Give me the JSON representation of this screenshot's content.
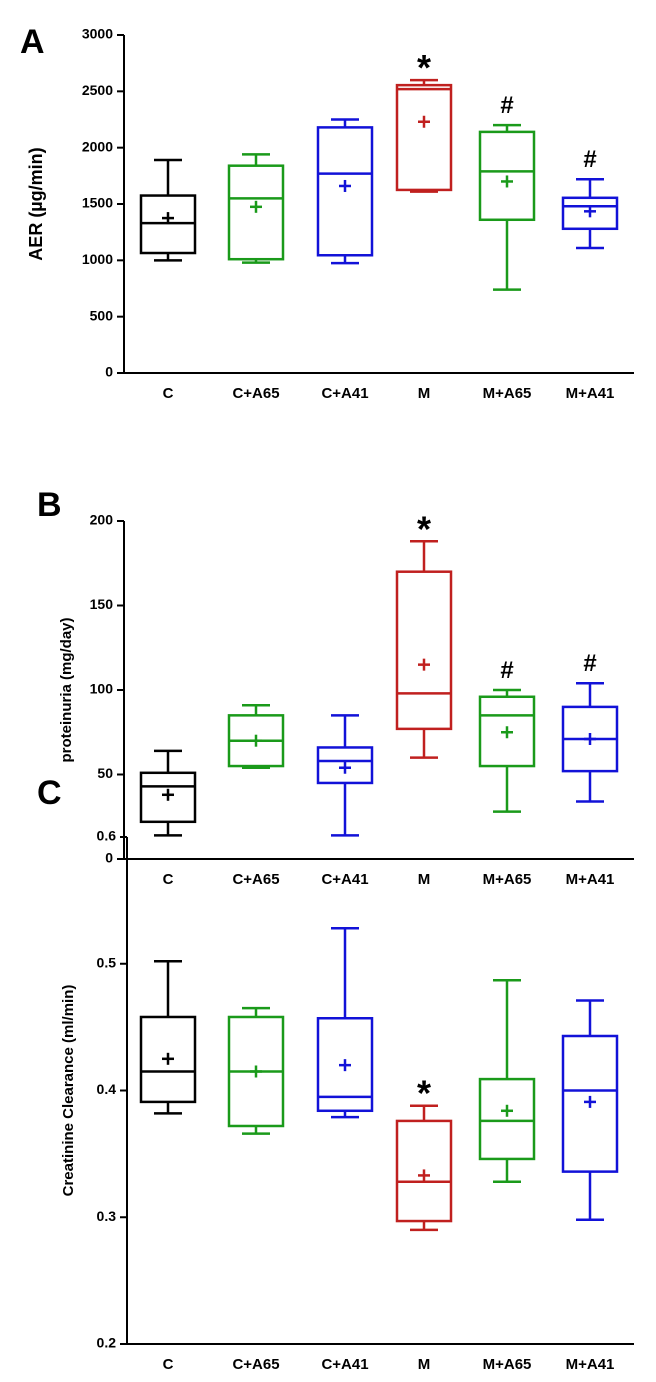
{
  "colors": {
    "C": "#000000",
    "A65": "#1a9a1a",
    "A41": "#1212d8",
    "M": "#c0201f"
  },
  "chart_data": [
    {
      "type": "boxplot",
      "panel_label": "A",
      "ylabel": "AER (µg/min)",
      "ylim": [
        0,
        3000
      ],
      "yticks": [
        0,
        500,
        1000,
        1500,
        2000,
        2500,
        3000
      ],
      "categories": [
        "C",
        "C+A65",
        "C+A41",
        "M",
        "M+A65",
        "M+A41"
      ],
      "boxes": [
        {
          "category": "C",
          "color_key": "C",
          "min": 1000,
          "q1": 1065,
          "median": 1330,
          "q3": 1575,
          "max": 1890,
          "mean": 1375,
          "sig": ""
        },
        {
          "category": "C+A65",
          "color_key": "A65",
          "min": 980,
          "q1": 1010,
          "median": 1550,
          "q3": 1840,
          "max": 1940,
          "mean": 1475,
          "sig": ""
        },
        {
          "category": "C+A41",
          "color_key": "A41",
          "min": 975,
          "q1": 1045,
          "median": 1770,
          "q3": 2180,
          "max": 2250,
          "mean": 1660,
          "sig": ""
        },
        {
          "category": "M",
          "color_key": "M",
          "min": 1610,
          "q1": 1625,
          "median": 2520,
          "q3": 2555,
          "max": 2600,
          "mean": 2230,
          "sig": "*"
        },
        {
          "category": "M+A65",
          "color_key": "A65",
          "min": 740,
          "q1": 1360,
          "median": 1790,
          "q3": 2140,
          "max": 2200,
          "mean": 1700,
          "sig": "#"
        },
        {
          "category": "M+A41",
          "color_key": "A41",
          "min": 1110,
          "q1": 1280,
          "median": 1480,
          "q3": 1555,
          "max": 1720,
          "mean": 1435,
          "sig": "#"
        }
      ]
    },
    {
      "type": "boxplot",
      "panel_label": "B",
      "ylabel": "proteinuria (mg/day)",
      "ylim": [
        0,
        200
      ],
      "yticks": [
        0,
        50,
        100,
        150,
        200
      ],
      "categories": [
        "C",
        "C+A65",
        "C+A41",
        "M",
        "M+A65",
        "M+A41"
      ],
      "boxes": [
        {
          "category": "C",
          "color_key": "C",
          "min": 14,
          "q1": 22,
          "median": 43,
          "q3": 51,
          "max": 64,
          "mean": 38,
          "sig": ""
        },
        {
          "category": "C+A65",
          "color_key": "A65",
          "min": 54,
          "q1": 55,
          "median": 70,
          "q3": 85,
          "max": 91,
          "mean": 70,
          "sig": ""
        },
        {
          "category": "C+A41",
          "color_key": "A41",
          "min": 14,
          "q1": 45,
          "median": 58,
          "q3": 66,
          "max": 85,
          "mean": 54,
          "sig": ""
        },
        {
          "category": "M",
          "color_key": "M",
          "min": 60,
          "q1": 77,
          "median": 98,
          "q3": 170,
          "max": 188,
          "mean": 115,
          "sig": "*"
        },
        {
          "category": "M+A65",
          "color_key": "A65",
          "min": 28,
          "q1": 55,
          "median": 85,
          "q3": 96,
          "max": 100,
          "mean": 75,
          "sig": "#"
        },
        {
          "category": "M+A41",
          "color_key": "A41",
          "min": 34,
          "q1": 52,
          "median": 71,
          "q3": 90,
          "max": 104,
          "mean": 71,
          "sig": "#"
        }
      ]
    },
    {
      "type": "boxplot",
      "panel_label": "C",
      "ylabel": "Creatinine Clearance (ml/min)",
      "ylim": [
        0.2,
        0.6
      ],
      "yticks": [
        0.2,
        0.3,
        0.4,
        0.5,
        0.6
      ],
      "ytick_labels": [
        "0.2",
        "0.3",
        "0.4",
        "0.5",
        "0.6"
      ],
      "categories": [
        "C",
        "C+A65",
        "C+A41",
        "M",
        "M+A65",
        "M+A41"
      ],
      "boxes": [
        {
          "category": "C",
          "color_key": "C",
          "min": 0.382,
          "q1": 0.391,
          "median": 0.415,
          "q3": 0.458,
          "max": 0.502,
          "mean": 0.425,
          "sig": ""
        },
        {
          "category": "C+A65",
          "color_key": "A65",
          "min": 0.366,
          "q1": 0.372,
          "median": 0.415,
          "q3": 0.458,
          "max": 0.465,
          "mean": 0.415,
          "sig": ""
        },
        {
          "category": "C+A41",
          "color_key": "A41",
          "min": 0.379,
          "q1": 0.384,
          "median": 0.395,
          "q3": 0.457,
          "max": 0.528,
          "mean": 0.42,
          "sig": ""
        },
        {
          "category": "M",
          "color_key": "M",
          "min": 0.29,
          "q1": 0.297,
          "median": 0.328,
          "q3": 0.376,
          "max": 0.388,
          "mean": 0.333,
          "sig": "*"
        },
        {
          "category": "M+A65",
          "color_key": "A65",
          "min": 0.328,
          "q1": 0.346,
          "median": 0.376,
          "q3": 0.409,
          "max": 0.487,
          "mean": 0.384,
          "sig": ""
        },
        {
          "category": "M+A41",
          "color_key": "A41",
          "min": 0.298,
          "q1": 0.336,
          "median": 0.4,
          "q3": 0.443,
          "max": 0.471,
          "mean": 0.391,
          "sig": ""
        }
      ]
    }
  ]
}
